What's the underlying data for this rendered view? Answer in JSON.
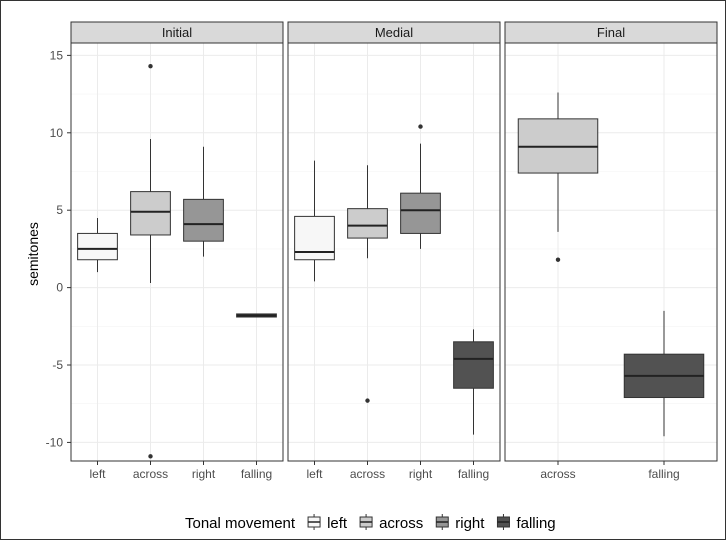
{
  "chart_data": {
    "type": "boxplot",
    "ylabel": "semitones",
    "ylim": [
      -11.2,
      15.8
    ],
    "y_ticks": [
      -10,
      -5,
      0,
      5,
      10,
      15
    ],
    "grid": true,
    "legend": {
      "title": "Tonal movement",
      "position": "bottom",
      "entries": [
        {
          "name": "left",
          "color": "#f7f7f7"
        },
        {
          "name": "across",
          "color": "#cccccc"
        },
        {
          "name": "right",
          "color": "#969696"
        },
        {
          "name": "falling",
          "color": "#525252"
        }
      ]
    },
    "panels": [
      {
        "title": "Initial",
        "categories": [
          "left",
          "across",
          "right",
          "falling"
        ],
        "boxes": [
          {
            "category": "left",
            "whisker_low": 1.0,
            "q1": 1.8,
            "median": 2.5,
            "q3": 3.5,
            "whisker_high": 4.5,
            "outliers": []
          },
          {
            "category": "across",
            "whisker_low": 0.3,
            "q1": 3.4,
            "median": 4.9,
            "q3": 6.2,
            "whisker_high": 9.6,
            "outliers": [
              14.3,
              -10.9
            ]
          },
          {
            "category": "right",
            "whisker_low": 2.0,
            "q1": 3.0,
            "median": 4.1,
            "q3": 5.7,
            "whisker_high": 9.1,
            "outliers": []
          },
          {
            "category": "falling",
            "whisker_low": -1.9,
            "q1": -1.9,
            "median": -1.8,
            "q3": -1.7,
            "whisker_high": -1.7,
            "outliers": []
          }
        ]
      },
      {
        "title": "Medial",
        "categories": [
          "left",
          "across",
          "right",
          "falling"
        ],
        "boxes": [
          {
            "category": "left",
            "whisker_low": 0.4,
            "q1": 1.8,
            "median": 2.3,
            "q3": 4.6,
            "whisker_high": 8.2,
            "outliers": []
          },
          {
            "category": "across",
            "whisker_low": 1.9,
            "q1": 3.2,
            "median": 4.0,
            "q3": 5.1,
            "whisker_high": 7.9,
            "outliers": [
              -7.3
            ]
          },
          {
            "category": "right",
            "whisker_low": 2.5,
            "q1": 3.5,
            "median": 5.0,
            "q3": 6.1,
            "whisker_high": 9.3,
            "outliers": [
              10.4
            ]
          },
          {
            "category": "falling",
            "whisker_low": -9.5,
            "q1": -6.5,
            "median": -4.6,
            "q3": -3.5,
            "whisker_high": -2.7,
            "outliers": []
          }
        ]
      },
      {
        "title": "Final",
        "categories": [
          "across",
          "falling"
        ],
        "boxes": [
          {
            "category": "across",
            "whisker_low": 3.6,
            "q1": 7.4,
            "median": 9.1,
            "q3": 10.9,
            "whisker_high": 12.6,
            "outliers": [
              1.8
            ]
          },
          {
            "category": "falling",
            "whisker_low": -9.6,
            "q1": -7.1,
            "median": -5.7,
            "q3": -4.3,
            "whisker_high": -1.5,
            "outliers": []
          }
        ]
      }
    ]
  }
}
